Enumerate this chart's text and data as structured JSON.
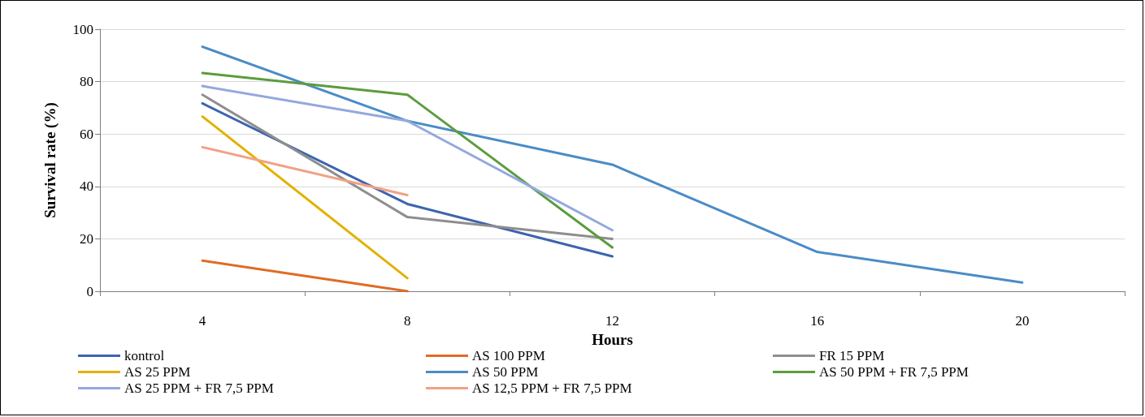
{
  "chart_data": {
    "type": "line",
    "xlabel": "Hours",
    "ylabel": "Survival rate (%)",
    "categories": [
      "4",
      "8",
      "12",
      "16",
      "20"
    ],
    "series": [
      {
        "name": "kontrol",
        "color": "#3d64b0",
        "values": [
          71.7,
          33.3,
          13.3,
          null,
          null
        ]
      },
      {
        "name": "AS 100 PPM",
        "color": "#e06b24",
        "values": [
          11.7,
          0,
          null,
          null,
          null
        ]
      },
      {
        "name": "FR 15 PPM",
        "color": "#8e8e8e",
        "values": [
          75,
          28.3,
          20,
          null,
          null
        ]
      },
      {
        "name": "AS 25 PPM",
        "color": "#e3b100",
        "values": [
          66.7,
          5,
          null,
          null,
          null
        ]
      },
      {
        "name": "AS 50 PPM",
        "color": "#4a8cc6",
        "values": [
          93.3,
          65,
          48.3,
          15,
          3.3
        ]
      },
      {
        "name": "AS 50 PPM + FR 7,5 PPM",
        "color": "#5c9c3c",
        "values": [
          83.3,
          75,
          16.7,
          null,
          null
        ]
      },
      {
        "name": "AS 25 PPM + FR 7,5 PPM",
        "color": "#93a9dd",
        "values": [
          78.3,
          65,
          23.3,
          null,
          null
        ]
      },
      {
        "name": "AS 12,5 PPM + FR 7,5 PPM",
        "color": "#f2a184",
        "values": [
          55,
          36.7,
          null,
          null,
          null
        ]
      }
    ],
    "ylim": [
      0,
      100
    ],
    "yticks": [
      0,
      20,
      40,
      60,
      80,
      100
    ],
    "grid": "y",
    "legend": "bottom",
    "marker": "none",
    "line_style": "solid"
  }
}
